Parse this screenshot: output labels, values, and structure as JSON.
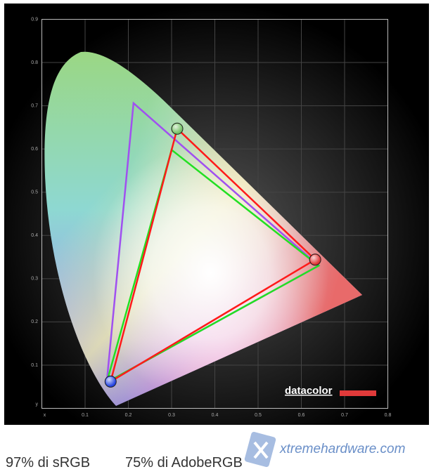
{
  "chart_data": {
    "type": "gamut",
    "xlim": [
      0,
      0.8
    ],
    "ylim": [
      0,
      0.9
    ],
    "xticks": [
      {
        "value": 0,
        "label": "x"
      },
      0.1,
      0.2,
      0.3,
      0.4,
      0.5,
      0.6,
      0.7,
      0.8
    ],
    "yticks": [
      {
        "value": 0,
        "label": "y"
      },
      0.1,
      0.2,
      0.3,
      0.4,
      0.5,
      0.6,
      0.7,
      0.8,
      0.9
    ],
    "grid": true,
    "series": [
      {
        "color": "#a050f0",
        "x": [
          0.64,
          0.212,
          0.15
        ],
        "y": [
          0.33,
          0.706,
          0.06
        ]
      },
      {
        "color": "#22e022",
        "x": [
          0.64,
          0.3,
          0.15
        ],
        "y": [
          0.33,
          0.598,
          0.06
        ]
      },
      {
        "color": "#ff1a1a",
        "x": [
          0.632,
          0.313,
          0.159
        ],
        "y": [
          0.344,
          0.647,
          0.062
        ],
        "markers": true,
        "marker_colors": [
          "#e03030",
          "#70c060",
          "#2040e0"
        ]
      }
    ],
    "logo": "datacolor"
  },
  "caption": [
    "97% di sRGB",
    "75% di AdobeRGB"
  ],
  "watermark": "xtremehardware.com"
}
